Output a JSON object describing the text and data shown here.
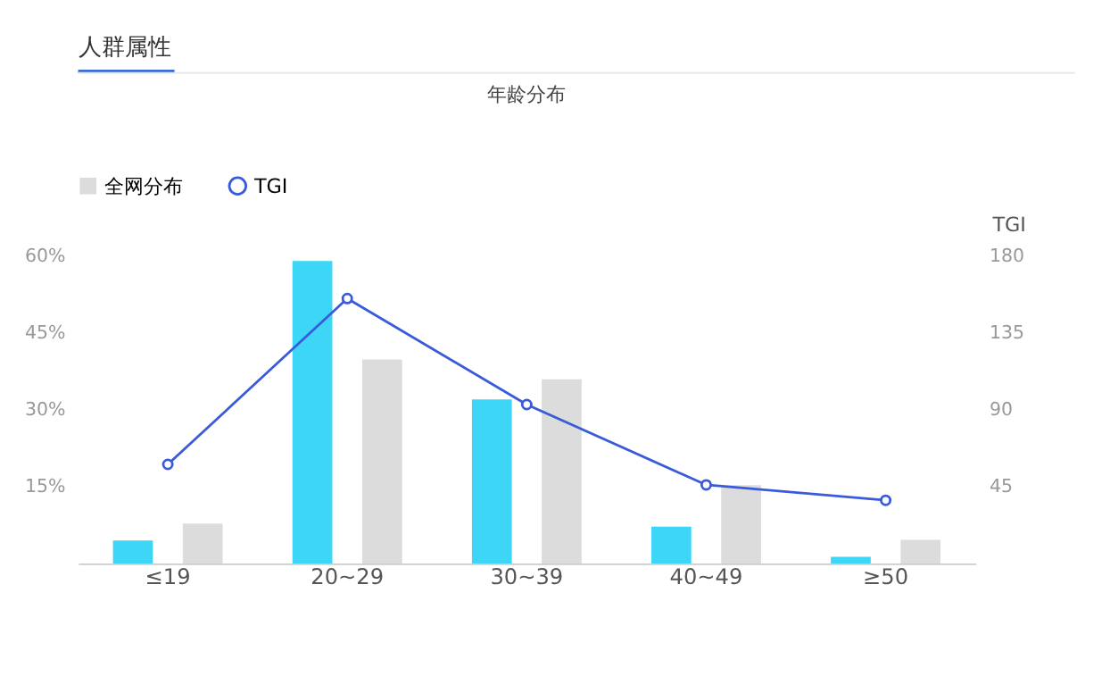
{
  "chart_data": {
    "type": "bar",
    "title": "年龄分布",
    "annotations": [
      "人群属性"
    ],
    "categories": [
      "≤19",
      "20~29",
      "30~39",
      "40~49",
      "≥50"
    ],
    "series": [
      {
        "color": "#3dd6f7",
        "values": [
          4.5,
          59,
          32,
          7.2,
          1.3
        ]
      },
      {
        "name": "全网分布",
        "color": "#dcdcdc",
        "values": [
          7.8,
          39.8,
          35.9,
          15.3,
          4.6
        ]
      },
      {
        "name": "TGI",
        "type": "line",
        "axis": "y2",
        "marker": "circle",
        "color": "#3a5bd9",
        "values": [
          58,
          155,
          93,
          46,
          37
        ]
      }
    ],
    "ylim": [
      0,
      60
    ],
    "yticks": [
      {
        "value": 15,
        "label": "15%"
      },
      {
        "value": 30,
        "label": "30%"
      },
      {
        "value": 45,
        "label": "45%"
      },
      {
        "value": 60,
        "label": "60%"
      }
    ],
    "y2label": "TGI",
    "y2lim": [
      0,
      180
    ],
    "y2ticks": [
      45,
      90,
      135,
      180
    ],
    "legend": "top left",
    "grid": false
  }
}
